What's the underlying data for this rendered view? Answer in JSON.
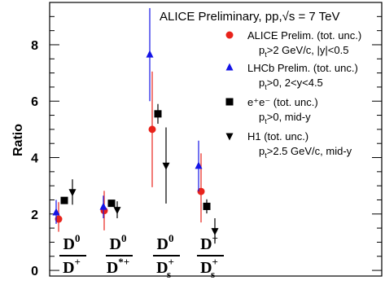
{
  "chart_data": {
    "type": "scatter",
    "title": "ALICE Preliminary, pp,√s = 7 TeV",
    "ylabel": "Ratio",
    "ylim": [
      -0.2,
      9.5
    ],
    "yticks": [
      "0",
      "2",
      "4",
      "6",
      "8"
    ],
    "categories": [
      {
        "num": "D",
        "num_sup": "0",
        "den": "D",
        "den_sup": "+",
        "den_sub": ""
      },
      {
        "num": "D",
        "num_sup": "0",
        "den": "D",
        "den_sup": "*+",
        "den_sub": ""
      },
      {
        "num": "D",
        "num_sup": "0",
        "den": "D",
        "den_sup": "+",
        "den_sub": "s"
      },
      {
        "num": "D",
        "num_sup": "+",
        "den": "D",
        "den_sup": "+",
        "den_sub": "s"
      }
    ],
    "series": [
      {
        "name": "ALICE Prelim. (tot. unc.)",
        "cond": "pt>2 GeV/c, |y|<0.5",
        "marker": "circle",
        "color": "#e8231b",
        "values": [
          1.82,
          2.12,
          5.0,
          2.8
        ],
        "err_lo": [
          0.45,
          0.7,
          2.05,
          1.1
        ],
        "err_hi": [
          0.6,
          0.7,
          2.05,
          1.35
        ]
      },
      {
        "name": "LHCb Prelim. (tot. unc.)",
        "cond": "pt>0, 2<y<4.5",
        "marker": "triangle-up",
        "color": "#1414e6",
        "values": [
          2.05,
          2.25,
          7.65,
          3.7
        ],
        "err_lo": [
          0.4,
          0.4,
          1.65,
          0.9
        ],
        "err_hi": [
          0.45,
          0.4,
          1.65,
          0.9
        ]
      },
      {
        "name": "e⁺e⁻ (tot. unc.)",
        "cond": "pt>0, mid-y",
        "marker": "square",
        "color": "#000000",
        "values": [
          2.48,
          2.38,
          5.55,
          2.27
        ],
        "err_lo": [
          0.1,
          0.1,
          0.35,
          0.25
        ],
        "err_hi": [
          0.1,
          0.1,
          0.35,
          0.25
        ]
      },
      {
        "name": "H1 (tot. unc.)",
        "cond": "pt>2.5 GeV/c, mid-y",
        "marker": "triangle-down",
        "color": "#000000",
        "values": [
          2.78,
          2.15,
          3.72,
          1.4
        ],
        "err_lo": [
          0.45,
          0.3,
          1.35,
          0.45
        ],
        "err_hi": [
          0.45,
          0.3,
          1.35,
          0.45
        ]
      }
    ]
  },
  "legend": {
    "items": [
      {
        "label": "ALICE Prelim. (tot. unc.)",
        "cond_main": "p",
        "cond_sub": "t",
        "cond_rest": ">2 GeV/c, |y|<0.5"
      },
      {
        "label": "LHCb Prelim. (tot. unc.)",
        "cond_main": "p",
        "cond_sub": "t",
        "cond_rest": ">0, 2<y<4.5"
      },
      {
        "label": "e⁺e⁻ (tot. unc.)",
        "cond_main": "p",
        "cond_sub": "t",
        "cond_rest": ">0, mid-y"
      },
      {
        "label": "H1 (tot. unc.)",
        "cond_main": "p",
        "cond_sub": "t",
        "cond_rest": ">2.5 GeV/c, mid-y"
      }
    ]
  }
}
